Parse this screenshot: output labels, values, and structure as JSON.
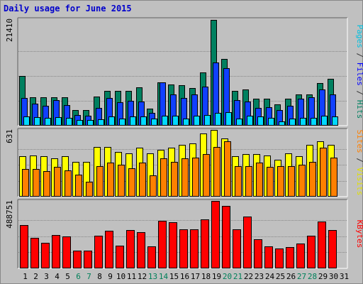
{
  "chart_data": {
    "type": "bar",
    "title": "Daily usage for June 2015",
    "categories": [
      "1",
      "2",
      "3",
      "4",
      "5",
      "6",
      "7",
      "8",
      "9",
      "10",
      "11",
      "12",
      "13",
      "14",
      "15",
      "16",
      "17",
      "18",
      "19",
      "20",
      "21",
      "22",
      "23",
      "24",
      "25",
      "26",
      "27",
      "28",
      "29",
      "30",
      "31"
    ],
    "weekend_days": [
      "6",
      "7",
      "13",
      "14",
      "20",
      "21",
      "27",
      "28"
    ],
    "panels": [
      {
        "name": "hits-files-pages",
        "ymax_label": "21410",
        "ymax": 21410,
        "axis_labels": [
          {
            "text": "Pages",
            "color": "#00c0e0"
          },
          {
            "text": " / ",
            "color": "#333333"
          },
          {
            "text": "Files",
            "color": "#0000ff"
          },
          {
            "text": " / ",
            "color": "#333333"
          },
          {
            "text": "Hits",
            "color": "#008060"
          }
        ],
        "series": [
          {
            "name": "Hits",
            "color": "#008060",
            "values": [
              10000,
              5700,
              5700,
              5700,
              5700,
              3200,
              3100,
              5900,
              7100,
              7000,
              7000,
              7800,
              3500,
              8800,
              8400,
              8200,
              7600,
              10800,
              21400,
              13500,
              7000,
              7400,
              5400,
              5400,
              4300,
              5500,
              6300,
              6300,
              8600,
              9500,
              null
            ]
          },
          {
            "name": "Files",
            "color": "#1040ff",
            "values": [
              5600,
              4400,
              4000,
              5200,
              4200,
              2200,
              2000,
              3600,
              5600,
              4800,
              5000,
              4900,
              2600,
              8800,
              6300,
              5600,
              6300,
              7900,
              12800,
              11600,
              5200,
              4900,
              3600,
              3800,
              3200,
              4000,
              5400,
              5700,
              7300,
              6300,
              null
            ]
          },
          {
            "name": "Pages",
            "color": "#00d8ff",
            "values": [
              1900,
              1700,
              1600,
              1700,
              1600,
              1100,
              1100,
              1300,
              1800,
              1500,
              1800,
              1800,
              1400,
              2000,
              2000,
              1400,
              2000,
              2100,
              2600,
              2700,
              1500,
              2000,
              1800,
              1600,
              900,
              1400,
              1600,
              1600,
              2000,
              1900,
              null
            ]
          }
        ]
      },
      {
        "name": "visits-sites",
        "ymax_label": "631",
        "ymax": 631,
        "axis_labels": [
          {
            "text": "Sites",
            "color": "#ff8000"
          },
          {
            "text": " / ",
            "color": "#333333"
          },
          {
            "text": "Visits",
            "color": "#e0e000"
          }
        ],
        "series": [
          {
            "name": "Visits",
            "color": "#ffff00",
            "values": [
              380,
              390,
              385,
              360,
              380,
              330,
              330,
              470,
              470,
              420,
              410,
              460,
              410,
              440,
              460,
              490,
              500,
              600,
              630,
              550,
              380,
              400,
              400,
              390,
              350,
              410,
              380,
              490,
              520,
              490,
              null
            ]
          },
          {
            "name": "Sites",
            "color": "#ff8000",
            "values": [
              260,
              260,
              240,
              280,
              250,
              210,
              140,
              290,
              320,
              300,
              270,
              320,
              200,
              360,
              330,
              360,
              370,
              400,
              470,
              520,
              290,
              290,
              320,
              280,
              290,
              290,
              300,
              330,
              460,
              370,
              null
            ]
          }
        ]
      },
      {
        "name": "kbytes",
        "ymax_label": "488751",
        "ymax": 488751,
        "axis_labels": [
          {
            "text": "KBytes",
            "color": "#ff0000"
          }
        ],
        "series": [
          {
            "name": "KBytes",
            "color": "#ff0000",
            "values": [
              313000,
              220000,
              183000,
              241000,
              229000,
              127000,
              128000,
              237000,
              272000,
              162000,
              279000,
              261000,
              158000,
              342000,
              336000,
              284000,
              281000,
              354000,
              488000,
              454000,
              281000,
              377000,
              212000,
              161000,
              144000,
              155000,
              178000,
              236000,
              339000,
              279000,
              null
            ]
          }
        ]
      }
    ]
  }
}
